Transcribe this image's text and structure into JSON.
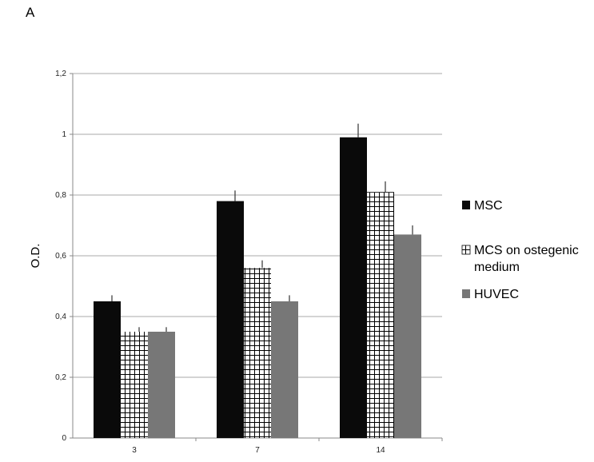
{
  "panel_label": "A",
  "chart_data": {
    "type": "bar",
    "title": "",
    "xlabel": "",
    "ylabel": "O.D.",
    "categories": [
      "3",
      "7",
      "14"
    ],
    "y_ticks": [
      "0",
      "0,2",
      "0,4",
      "0,6",
      "0,8",
      "1",
      "1,2"
    ],
    "ylim": [
      0,
      1.2
    ],
    "grid": true,
    "legend_position": "right",
    "series": [
      {
        "name": "MSC",
        "values": [
          0.45,
          0.78,
          0.99
        ],
        "errors": [
          0.02,
          0.035,
          0.045
        ],
        "color": "#0a0a0a",
        "pattern": "solid"
      },
      {
        "name": "MCS on ostegenic medium",
        "legend_lines": [
          "MCS on ostegenic",
          "medium"
        ],
        "values": [
          0.35,
          0.56,
          0.81
        ],
        "errors": [
          0.015,
          0.025,
          0.035
        ],
        "color": "#000000",
        "pattern": "grid"
      },
      {
        "name": "HUVEC",
        "values": [
          0.35,
          0.45,
          0.67
        ],
        "errors": [
          0.015,
          0.02,
          0.03
        ],
        "color": "#777777",
        "pattern": "solid"
      }
    ]
  }
}
